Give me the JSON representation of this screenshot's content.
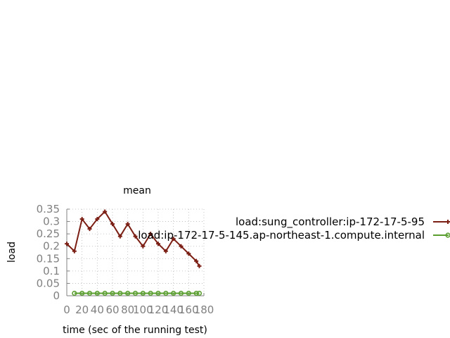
{
  "chart_data": {
    "type": "line",
    "title": "mean",
    "xlabel": "time (sec of the running test)",
    "ylabel": "load",
    "xlim": [
      0,
      180
    ],
    "ylim": [
      0,
      0.35
    ],
    "x_ticks": [
      "0",
      "20",
      "40",
      "60",
      "80",
      "100",
      "120",
      "140",
      "160",
      "180"
    ],
    "y_ticks": [
      "0",
      "0.05",
      "0.1",
      "0.15",
      "0.2",
      "0.25",
      "0.3",
      "0.35"
    ],
    "grid": true,
    "legend_position": "right",
    "series": [
      {
        "name": "load:sung_controller:ip-172-17-5-95",
        "color": "#7b1e14",
        "marker": "plus",
        "x": [
          0,
          10,
          20,
          30,
          40,
          50,
          60,
          70,
          80,
          90,
          100,
          110,
          120,
          130,
          140,
          150,
          160,
          170,
          174
        ],
        "y": [
          0.21,
          0.18,
          0.31,
          0.27,
          0.31,
          0.34,
          0.29,
          0.24,
          0.29,
          0.24,
          0.2,
          0.25,
          0.21,
          0.18,
          0.23,
          0.2,
          0.17,
          0.14,
          0.12
        ]
      },
      {
        "name": "load:ip-172-17-5-145.ap-northeast-1.compute.internal",
        "color": "#5a9e2f",
        "marker": "circle",
        "x": [
          10,
          20,
          30,
          40,
          50,
          60,
          70,
          80,
          90,
          100,
          110,
          120,
          130,
          140,
          150,
          160,
          170,
          174
        ],
        "y": [
          0.01,
          0.01,
          0.01,
          0.01,
          0.01,
          0.01,
          0.01,
          0.01,
          0.01,
          0.01,
          0.01,
          0.01,
          0.01,
          0.01,
          0.01,
          0.01,
          0.01,
          0.01
        ]
      }
    ]
  }
}
